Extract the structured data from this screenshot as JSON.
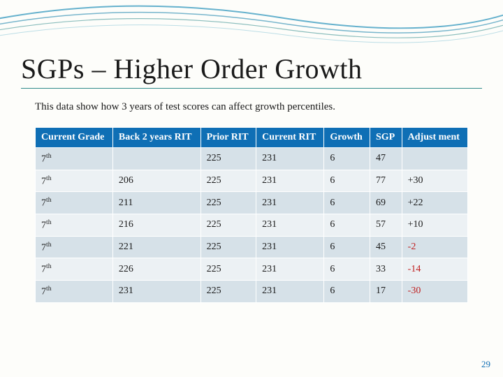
{
  "title": "SGPs – Higher Order Growth",
  "subtitle": "This data show how 3 years of test scores can affect growth percentiles.",
  "page_number": "29",
  "colors": {
    "header_bg": "#0f6fb5",
    "header_text": "#ffffff",
    "row_odd": "#d6e1e8",
    "row_even": "#ecf1f4",
    "title_underline": "#2f8a8a",
    "negative": "#c02020",
    "page_num": "#0f6fb5"
  },
  "table": {
    "columns": [
      "Current Grade",
      "Back 2 years RIT",
      "Prior RIT",
      "Current RIT",
      "Growth",
      "SGP",
      "Adjust ment"
    ],
    "rows": [
      {
        "grade": "7",
        "ord": "th",
        "back2": "",
        "prior": "225",
        "current": "231",
        "growth": "6",
        "sgp": "47",
        "adj": "",
        "neg": false
      },
      {
        "grade": "7",
        "ord": "th",
        "back2": "206",
        "prior": "225",
        "current": "231",
        "growth": "6",
        "sgp": "77",
        "adj": "+30",
        "neg": false
      },
      {
        "grade": "7",
        "ord": "th",
        "back2": "211",
        "prior": "225",
        "current": "231",
        "growth": "6",
        "sgp": "69",
        "adj": "+22",
        "neg": false
      },
      {
        "grade": "7",
        "ord": "th",
        "back2": "216",
        "prior": "225",
        "current": "231",
        "growth": "6",
        "sgp": "57",
        "adj": "+10",
        "neg": false
      },
      {
        "grade": "7",
        "ord": "th",
        "back2": "221",
        "prior": "225",
        "current": "231",
        "growth": "6",
        "sgp": "45",
        "adj": "-2",
        "neg": true
      },
      {
        "grade": "7",
        "ord": "th",
        "back2": "226",
        "prior": "225",
        "current": "231",
        "growth": "6",
        "sgp": "33",
        "adj": "-14",
        "neg": true
      },
      {
        "grade": "7",
        "ord": "th",
        "back2": "231",
        "prior": "225",
        "current": "231",
        "growth": "6",
        "sgp": "17",
        "adj": "-30",
        "neg": true
      }
    ]
  }
}
